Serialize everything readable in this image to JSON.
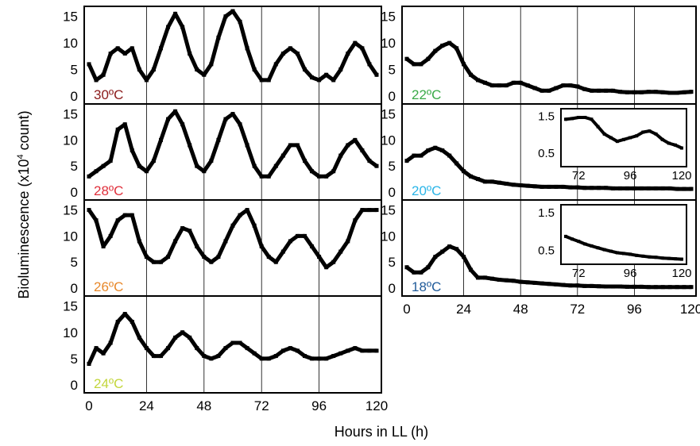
{
  "figure": {
    "y_axis_label": "Bioluminescence (x10",
    "y_axis_label_sup": "4",
    "y_axis_label_suffix": " count)",
    "x_axis_label": "Hours in LL (h)"
  },
  "chart_data": [
    {
      "type": "line",
      "panel": "left-1",
      "temperature_label": "30ºC",
      "label_color": "#8b1a1a",
      "xlim": [
        0,
        120
      ],
      "ylim": [
        0,
        16
      ],
      "xticks": [
        0,
        24,
        48,
        72,
        96,
        120
      ],
      "yticks": [
        0,
        5,
        10,
        15
      ],
      "show_xticklabels": false,
      "x": [
        0,
        3,
        6,
        9,
        12,
        15,
        18,
        21,
        24,
        27,
        30,
        33,
        36,
        39,
        42,
        45,
        48,
        51,
        54,
        57,
        60,
        63,
        66,
        69,
        72,
        75,
        78,
        81,
        84,
        87,
        90,
        93,
        96,
        99,
        102,
        105,
        108,
        111,
        114,
        117,
        120
      ],
      "y": [
        6,
        3,
        4,
        8,
        9,
        8,
        9,
        5,
        3,
        5,
        9,
        13,
        15.5,
        13,
        8,
        5,
        4,
        6,
        11,
        15,
        16,
        14,
        9,
        5,
        3,
        3,
        6,
        8,
        9,
        8,
        5,
        3.5,
        3,
        4,
        3,
        5,
        8,
        10,
        9,
        6,
        4
      ]
    },
    {
      "type": "line",
      "panel": "left-2",
      "temperature_label": "28ºC",
      "label_color": "#e0303c",
      "xlim": [
        0,
        120
      ],
      "ylim": [
        0,
        16
      ],
      "xticks": [
        0,
        24,
        48,
        72,
        96,
        120
      ],
      "yticks": [
        0,
        5,
        10,
        15
      ],
      "show_xticklabels": false,
      "x": [
        0,
        3,
        6,
        9,
        12,
        15,
        18,
        21,
        24,
        27,
        30,
        33,
        36,
        39,
        42,
        45,
        48,
        51,
        54,
        57,
        60,
        63,
        66,
        69,
        72,
        75,
        78,
        81,
        84,
        87,
        90,
        93,
        96,
        99,
        102,
        105,
        108,
        111,
        114,
        117,
        120
      ],
      "y": [
        3,
        4,
        5,
        6,
        12,
        13,
        8,
        5,
        4,
        6,
        10,
        14,
        15.5,
        13,
        9,
        5,
        4,
        6,
        10,
        14,
        15,
        13,
        9,
        5,
        3,
        3,
        5,
        7,
        9,
        9,
        6,
        4,
        3,
        3,
        4,
        7,
        9,
        10,
        8,
        6,
        5
      ]
    },
    {
      "type": "line",
      "panel": "left-3",
      "temperature_label": "26ºC",
      "label_color": "#e8882a",
      "xlim": [
        0,
        120
      ],
      "ylim": [
        0,
        16
      ],
      "xticks": [
        0,
        24,
        48,
        72,
        96,
        120
      ],
      "yticks": [
        0,
        5,
        10,
        15
      ],
      "show_xticklabels": false,
      "x": [
        0,
        3,
        6,
        9,
        12,
        15,
        18,
        21,
        24,
        27,
        30,
        33,
        36,
        39,
        42,
        45,
        48,
        51,
        54,
        57,
        60,
        63,
        66,
        69,
        72,
        75,
        78,
        81,
        84,
        87,
        90,
        93,
        96,
        99,
        102,
        105,
        108,
        111,
        114,
        117,
        120
      ],
      "y": [
        15,
        13,
        8,
        10,
        13,
        14,
        14,
        9,
        6,
        5,
        5,
        6,
        9,
        11.5,
        11,
        8,
        6,
        5,
        6,
        9,
        12,
        14,
        15,
        12,
        8,
        6,
        5,
        7,
        9,
        10,
        10,
        8,
        6,
        4,
        5,
        7,
        9,
        13,
        15,
        15,
        15
      ]
    },
    {
      "type": "line",
      "panel": "left-4",
      "temperature_label": "24ºC",
      "label_color": "#c3d63c",
      "xlim": [
        0,
        120
      ],
      "ylim": [
        0,
        16
      ],
      "xticks": [
        0,
        24,
        48,
        72,
        96,
        120
      ],
      "yticks": [
        0,
        5,
        10,
        15
      ],
      "show_xticklabels": true,
      "x": [
        0,
        3,
        6,
        9,
        12,
        15,
        18,
        21,
        24,
        27,
        30,
        33,
        36,
        39,
        42,
        45,
        48,
        51,
        54,
        57,
        60,
        63,
        66,
        69,
        72,
        75,
        78,
        81,
        84,
        87,
        90,
        93,
        96,
        99,
        102,
        105,
        108,
        111,
        114,
        117,
        120
      ],
      "y": [
        4,
        7,
        6,
        8,
        12,
        13.5,
        12,
        9,
        7,
        5.5,
        5.5,
        7,
        9,
        10,
        9,
        7,
        5.5,
        5,
        5.5,
        7,
        8,
        8,
        7,
        6,
        5,
        5,
        5.5,
        6.5,
        7,
        6.5,
        5.5,
        5,
        5,
        5,
        5.5,
        6,
        6.5,
        7,
        6.5,
        6.5,
        6.5
      ]
    },
    {
      "type": "line",
      "panel": "right-1",
      "temperature_label": "22ºC",
      "label_color": "#3aaa48",
      "xlim": [
        0,
        120
      ],
      "ylim": [
        0,
        16
      ],
      "xticks": [
        0,
        24,
        48,
        72,
        96,
        120
      ],
      "yticks": [
        0,
        5,
        10,
        15
      ],
      "show_xticklabels": false,
      "x": [
        0,
        3,
        6,
        9,
        12,
        15,
        18,
        21,
        24,
        27,
        30,
        33,
        36,
        39,
        42,
        45,
        48,
        51,
        54,
        57,
        60,
        63,
        66,
        69,
        72,
        75,
        78,
        81,
        84,
        87,
        90,
        93,
        96,
        99,
        102,
        105,
        108,
        111,
        114,
        117,
        120
      ],
      "y": [
        7,
        6,
        6,
        7,
        8.5,
        9.5,
        10,
        9,
        6,
        4,
        3,
        2.5,
        2,
        2,
        2,
        2.5,
        2.5,
        2,
        1.5,
        1,
        1,
        1.5,
        2,
        2,
        1.8,
        1.3,
        1,
        1,
        1,
        1,
        0.8,
        0.7,
        0.7,
        0.7,
        0.8,
        0.8,
        0.7,
        0.6,
        0.6,
        0.7,
        0.8
      ]
    },
    {
      "type": "line",
      "panel": "right-2",
      "temperature_label": "20ºC",
      "label_color": "#2bb5e8",
      "xlim": [
        0,
        120
      ],
      "ylim": [
        0,
        16
      ],
      "xticks": [
        0,
        24,
        48,
        72,
        96,
        120
      ],
      "yticks": [
        0,
        5,
        10,
        15
      ],
      "show_xticklabels": false,
      "x": [
        0,
        3,
        6,
        9,
        12,
        15,
        18,
        21,
        24,
        27,
        30,
        33,
        36,
        39,
        42,
        45,
        48,
        51,
        54,
        57,
        60,
        63,
        66,
        69,
        72,
        75,
        78,
        81,
        84,
        87,
        90,
        93,
        96,
        99,
        102,
        105,
        108,
        111,
        114,
        117,
        120
      ],
      "y": [
        6,
        7,
        7,
        8,
        8.5,
        8,
        7,
        5.5,
        4,
        3,
        2.5,
        2,
        2,
        1.8,
        1.6,
        1.4,
        1.3,
        1.2,
        1.1,
        1,
        1,
        1,
        1,
        0.9,
        0.9,
        0.8,
        0.8,
        0.8,
        0.8,
        0.7,
        0.7,
        0.7,
        0.7,
        0.7,
        0.7,
        0.7,
        0.7,
        0.7,
        0.6,
        0.6,
        0.6
      ],
      "inset": {
        "xlim": [
          66,
          120
        ],
        "ylim": [
          0.2,
          1.6
        ],
        "xticks": [
          72,
          96,
          120
        ],
        "yticks": [
          0.5,
          1.5
        ],
        "x": [
          66,
          69,
          72,
          75,
          78,
          81,
          84,
          87,
          90,
          93,
          96,
          99,
          102,
          105,
          108,
          111,
          114,
          117,
          120
        ],
        "y": [
          1.4,
          1.42,
          1.45,
          1.45,
          1.4,
          1.2,
          1.0,
          0.9,
          0.8,
          0.85,
          0.9,
          0.95,
          1.05,
          1.08,
          1.0,
          0.85,
          0.75,
          0.7,
          0.62
        ]
      }
    },
    {
      "type": "line",
      "panel": "right-3",
      "temperature_label": "18ºC",
      "label_color": "#1f5a99",
      "xlim": [
        0,
        120
      ],
      "ylim": [
        0,
        16
      ],
      "xticks": [
        0,
        24,
        48,
        72,
        96,
        120
      ],
      "yticks": [
        0,
        5,
        10,
        15
      ],
      "show_xticklabels": true,
      "x": [
        0,
        3,
        6,
        9,
        12,
        15,
        18,
        21,
        24,
        27,
        30,
        33,
        36,
        39,
        42,
        45,
        48,
        51,
        54,
        57,
        60,
        63,
        66,
        69,
        72,
        75,
        78,
        81,
        84,
        87,
        90,
        93,
        96,
        99,
        102,
        105,
        108,
        111,
        114,
        117,
        120
      ],
      "y": [
        4,
        3,
        3,
        4,
        6,
        7,
        8,
        7.5,
        6,
        3.5,
        2,
        2,
        1.8,
        1.6,
        1.5,
        1.4,
        1.2,
        1.1,
        1,
        0.9,
        0.8,
        0.7,
        0.6,
        0.5,
        0.5,
        0.4,
        0.4,
        0.35,
        0.3,
        0.3,
        0.3,
        0.25,
        0.25,
        0.25,
        0.2,
        0.2,
        0.2,
        0.2,
        0.2,
        0.2,
        0.2
      ],
      "inset": {
        "xlim": [
          66,
          120
        ],
        "ylim": [
          0.2,
          1.6
        ],
        "xticks": [
          72,
          96,
          120
        ],
        "yticks": [
          0.5,
          1.5
        ],
        "x": [
          66,
          69,
          72,
          75,
          78,
          81,
          84,
          87,
          90,
          93,
          96,
          99,
          102,
          105,
          108,
          111,
          114,
          117,
          120
        ],
        "y": [
          0.85,
          0.78,
          0.72,
          0.65,
          0.6,
          0.55,
          0.5,
          0.46,
          0.42,
          0.4,
          0.38,
          0.35,
          0.33,
          0.31,
          0.3,
          0.28,
          0.27,
          0.26,
          0.25
        ]
      }
    }
  ]
}
